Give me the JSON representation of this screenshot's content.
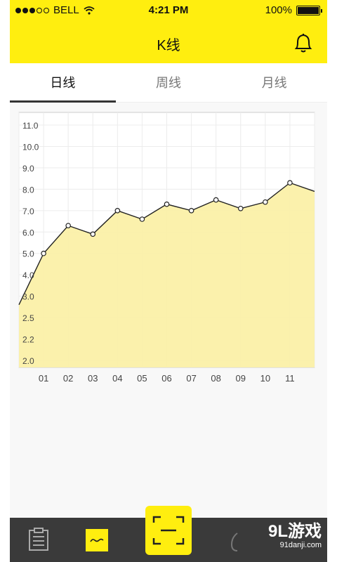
{
  "status_bar": {
    "carrier": "BELL",
    "time": "4:21 PM",
    "battery": "100%"
  },
  "header": {
    "title": "K线",
    "bell_icon": "bell-icon"
  },
  "tabs": [
    {
      "label": "日线",
      "active": true
    },
    {
      "label": "周线",
      "active": false
    },
    {
      "label": "月线",
      "active": false
    }
  ],
  "chart_data": {
    "type": "area",
    "x": [
      "",
      "01",
      "02",
      "03",
      "04",
      "05",
      "06",
      "07",
      "08",
      "09",
      "10",
      "11",
      ""
    ],
    "y": [
      2.8,
      5.0,
      6.3,
      5.9,
      7.0,
      6.6,
      7.3,
      7.0,
      7.5,
      7.1,
      7.4,
      8.3,
      7.9
    ],
    "yticks": [
      "2.0",
      "2.2",
      "2.5",
      "3.0",
      "4.0",
      "5.0",
      "6.0",
      "7.0",
      "8.0",
      "9.0",
      "10.0",
      "11.0"
    ],
    "grid": true,
    "fill_color": "#fbf0a8",
    "line_color": "#222222"
  },
  "bottom_nav": {
    "watermark": "9L游戏",
    "watermark_sub": "91danji.com"
  },
  "colors": {
    "accent": "#ffee0f",
    "dark": "#3a3a3a"
  }
}
